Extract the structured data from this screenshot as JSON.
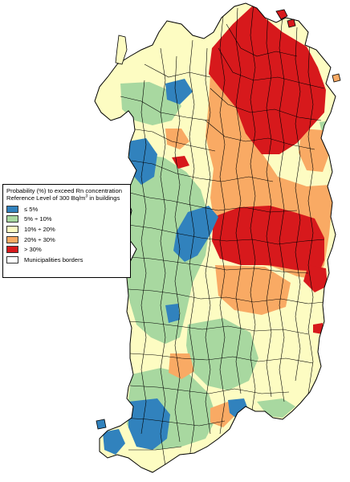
{
  "legend": {
    "title_line1": "Probability (%) to exceed  Rn concentration",
    "title_line2_prefix": "Reference Level of 300 Bq/m",
    "title_line2_sup": "3",
    "title_line2_suffix": " in buildings",
    "classes": [
      {
        "label": "≤ 5%",
        "color": "#3182bd",
        "icon": "legend-swatch-blue"
      },
      {
        "label": "5% ÷ 10%",
        "color": "#a8d8a0",
        "icon": "legend-swatch-green"
      },
      {
        "label": "10% ÷ 20%",
        "color": "#fdfcc2",
        "icon": "legend-swatch-yellow"
      },
      {
        "label": "20% ÷ 30%",
        "color": "#f9aa64",
        "icon": "legend-swatch-orange"
      },
      {
        "label": "> 30%",
        "color": "#d7191c",
        "icon": "legend-swatch-red"
      }
    ],
    "borders": {
      "label": "Municipalities borders",
      "color": "#ffffff",
      "icon": "legend-swatch-white"
    }
  }
}
